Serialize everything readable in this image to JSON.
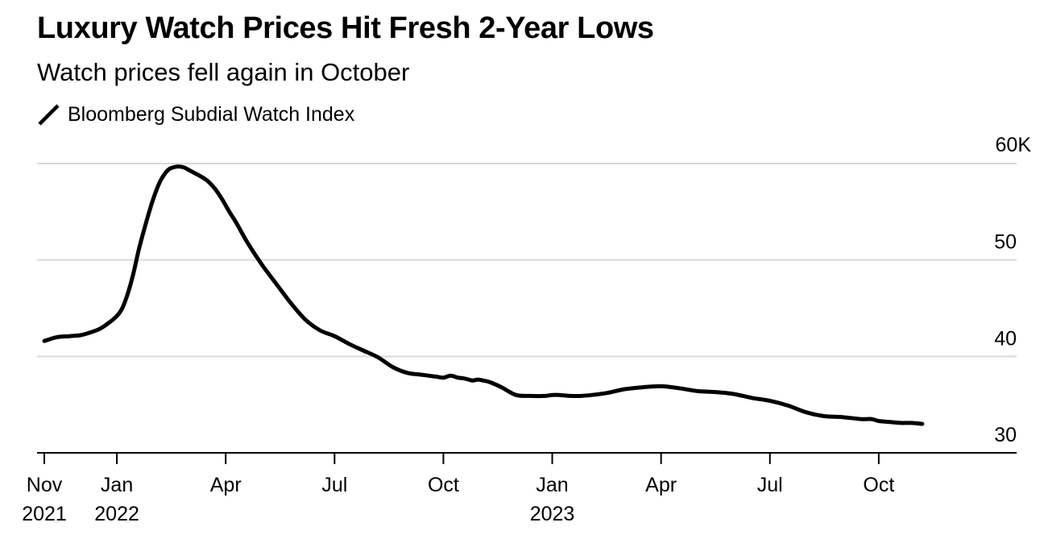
{
  "header": {
    "title": "Luxury Watch Prices Hit Fresh 2-Year Lows",
    "subtitle": "Watch prices fell again in October"
  },
  "colors": {
    "line": "#000000",
    "grid": "#d9d9d9",
    "axis": "#000000",
    "background": "#ffffff"
  },
  "chart_data": {
    "type": "line",
    "title": "Luxury Watch Prices Hit Fresh 2-Year Lows",
    "subtitle": "Watch prices fell again in October",
    "xlabel": "",
    "ylabel": "",
    "ylim": [
      30,
      60
    ],
    "xlim": [
      -0.2,
      26.8
    ],
    "grid": true,
    "y_axis_side": "right",
    "legend": {
      "position": "top-left",
      "entries": [
        "Bloomberg Subdial Watch Index"
      ]
    },
    "y_ticks": [
      {
        "value": 30,
        "label": "30"
      },
      {
        "value": 40,
        "label": "40"
      },
      {
        "value": 50,
        "label": "50"
      },
      {
        "value": 60,
        "label": "60K"
      }
    ],
    "x_ticks": [
      {
        "value": 0,
        "line1": "Nov",
        "line2": "2021"
      },
      {
        "value": 2,
        "line1": "Jan",
        "line2": "2022"
      },
      {
        "value": 5,
        "line1": "Apr",
        "line2": ""
      },
      {
        "value": 8,
        "line1": "Jul",
        "line2": ""
      },
      {
        "value": 11,
        "line1": "Oct",
        "line2": ""
      },
      {
        "value": 14,
        "line1": "Jan",
        "line2": "2023"
      },
      {
        "value": 17,
        "line1": "Apr",
        "line2": ""
      },
      {
        "value": 20,
        "line1": "Jul",
        "line2": ""
      },
      {
        "value": 23,
        "line1": "Oct",
        "line2": ""
      }
    ],
    "series": [
      {
        "name": "Bloomberg Subdial Watch Index",
        "x": [
          0,
          0.35,
          0.7,
          1.0,
          1.2,
          1.5,
          1.75,
          2.0,
          2.15,
          2.3,
          2.45,
          2.6,
          2.8,
          3.0,
          3.2,
          3.4,
          3.55,
          3.7,
          3.85,
          4.0,
          4.15,
          4.3,
          4.5,
          4.7,
          4.9,
          5.1,
          5.3,
          5.6,
          6.0,
          6.4,
          6.8,
          7.2,
          7.6,
          8.0,
          8.4,
          8.8,
          9.2,
          9.6,
          10.0,
          10.4,
          10.8,
          11.0,
          11.2,
          11.4,
          11.6,
          11.8,
          11.95,
          12.1,
          12.3,
          12.6,
          13.0,
          13.4,
          13.8,
          14.0,
          14.2,
          14.5,
          14.8,
          15.1,
          15.5,
          16.0,
          16.5,
          17.0,
          17.5,
          18.0,
          18.5,
          19.0,
          19.5,
          20.0,
          20.5,
          21.0,
          21.5,
          22.0,
          22.5,
          22.8,
          23.0,
          23.3,
          23.6,
          23.9,
          24.2
        ],
        "values": [
          41.6,
          42.0,
          42.1,
          42.2,
          42.4,
          42.8,
          43.4,
          44.2,
          45.0,
          46.5,
          48.5,
          51.0,
          53.8,
          56.3,
          58.2,
          59.3,
          59.6,
          59.7,
          59.6,
          59.3,
          59.0,
          58.7,
          58.2,
          57.4,
          56.3,
          55.0,
          53.8,
          51.8,
          49.5,
          47.5,
          45.5,
          43.8,
          42.7,
          42.1,
          41.3,
          40.6,
          39.9,
          38.9,
          38.3,
          38.1,
          37.9,
          37.8,
          38.0,
          37.8,
          37.7,
          37.5,
          37.6,
          37.5,
          37.3,
          36.8,
          36.0,
          35.9,
          35.9,
          36.0,
          36.0,
          35.9,
          35.9,
          36.0,
          36.2,
          36.6,
          36.8,
          36.9,
          36.7,
          36.4,
          36.3,
          36.1,
          35.7,
          35.4,
          34.9,
          34.2,
          33.8,
          33.7,
          33.5,
          33.5,
          33.3,
          33.2,
          33.1,
          33.1,
          33.0
        ]
      }
    ]
  }
}
